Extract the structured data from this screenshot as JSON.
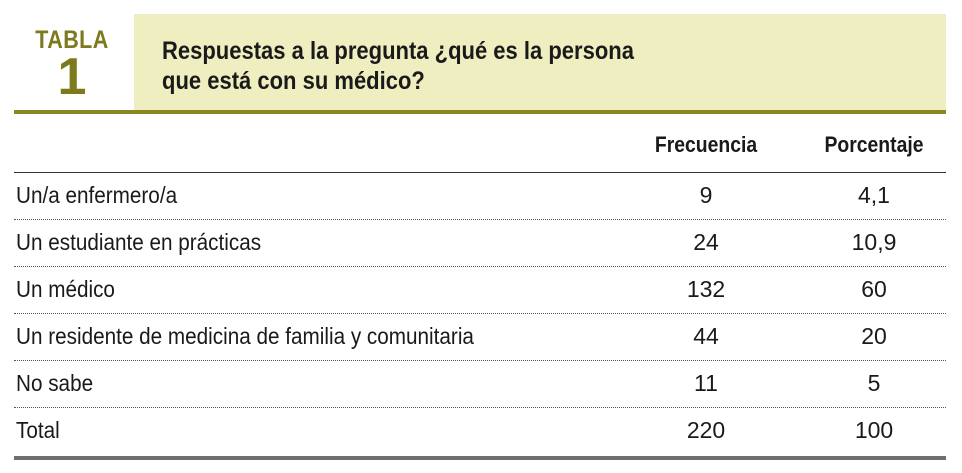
{
  "label": {
    "word": "TABLA",
    "number": "1"
  },
  "title": {
    "line1": "Respuestas a la pregunta ¿qué es la persona",
    "line2": "que está con su médico?"
  },
  "colors": {
    "accent": "#7c7a1c",
    "title_background": "#eeeec1",
    "rule": "#8a871f"
  },
  "table": {
    "headers": {
      "label": "",
      "frequency": "Frecuencia",
      "percentage": "Porcentaje"
    },
    "rows": [
      {
        "label": "Un/a enfermero/a",
        "frequency": "9",
        "percentage": "4,1"
      },
      {
        "label": "Un estudiante en prácticas",
        "frequency": "24",
        "percentage": "10,9"
      },
      {
        "label": "Un médico",
        "frequency": "132",
        "percentage": "60"
      },
      {
        "label": "Un residente de medicina de familia y comunitaria",
        "frequency": "44",
        "percentage": "20"
      },
      {
        "label": "No sabe",
        "frequency": "11",
        "percentage": "5"
      },
      {
        "label": "Total",
        "frequency": "220",
        "percentage": "100"
      }
    ]
  }
}
